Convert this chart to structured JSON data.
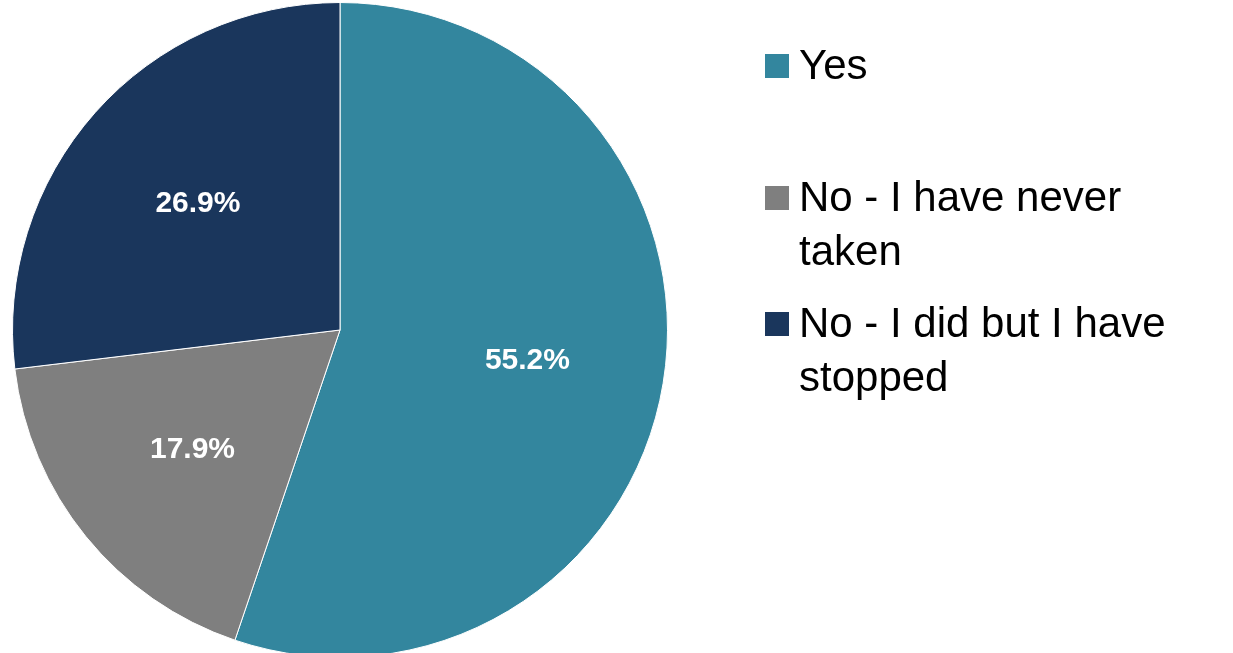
{
  "chart_data": {
    "type": "pie",
    "categories": [
      "Yes",
      "No - I have never taken",
      "No - I did but I have stopped"
    ],
    "values": [
      55.2,
      17.9,
      26.9
    ],
    "colors": [
      "#33869e",
      "#7f7f7f",
      "#1a365c"
    ],
    "value_labels": [
      "55.2%",
      "17.9%",
      "26.9%"
    ],
    "legend": "right"
  }
}
